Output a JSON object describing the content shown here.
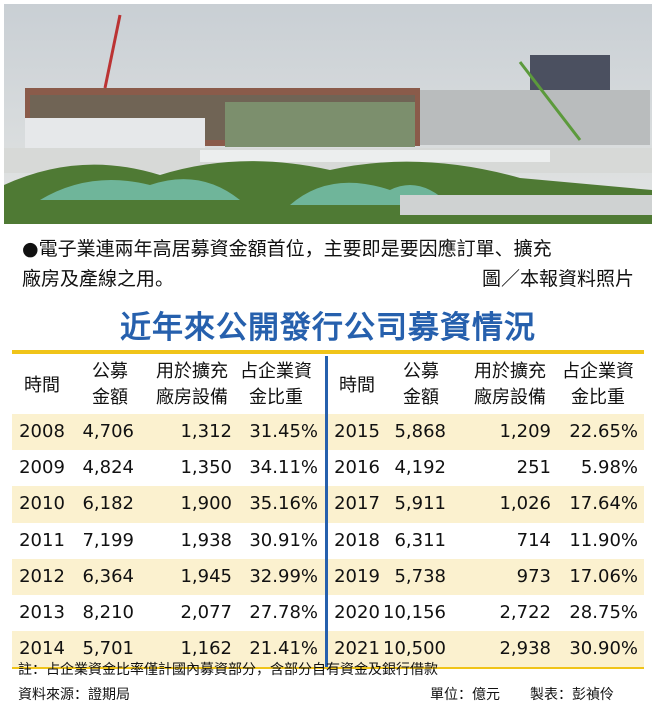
{
  "photo": {
    "caption_lines": [
      "●電子業連兩年高居募資金額首位，主要即是要因應訂單、擴充",
      "廠房及產線之用。"
    ],
    "credit": "圖／本報資料照片"
  },
  "title": "近年來公開發行公司募資情況",
  "table": {
    "columns": [
      [
        "時間"
      ],
      [
        "公募",
        "金額"
      ],
      [
        "用於擴充",
        "廠房設備"
      ],
      [
        "占企業資",
        "金比重"
      ]
    ],
    "left_rows": [
      [
        "2008",
        "4,706",
        "1,312",
        "31.45%"
      ],
      [
        "2009",
        "4,824",
        "1,350",
        "34.11%"
      ],
      [
        "2010",
        "6,182",
        "1,900",
        "35.16%"
      ],
      [
        "2011",
        "7,199",
        "1,938",
        "30.91%"
      ],
      [
        "2012",
        "6,364",
        "1,945",
        "32.99%"
      ],
      [
        "2013",
        "8,210",
        "2,077",
        "27.78%"
      ],
      [
        "2014",
        "5,701",
        "1,162",
        "21.41%"
      ]
    ],
    "right_rows": [
      [
        "2015",
        "5,868",
        "1,209",
        "22.65%"
      ],
      [
        "2016",
        "4,192",
        "251",
        "5.98%"
      ],
      [
        "2017",
        "5,911",
        "1,026",
        "17.64%"
      ],
      [
        "2018",
        "6,311",
        "714",
        "11.90%"
      ],
      [
        "2019",
        "5,738",
        "973",
        "17.06%"
      ],
      [
        "2020",
        "10,156",
        "2,722",
        "28.75%"
      ],
      [
        "2021",
        "10,500",
        "2,938",
        "30.90%"
      ]
    ]
  },
  "note": "註：占企業資金比率僅計國內募資部分，含部分自有資金及銀行借款",
  "source": "資料來源：證期局",
  "unit": "單位：億元",
  "maker": "製表：彭禎伶"
}
